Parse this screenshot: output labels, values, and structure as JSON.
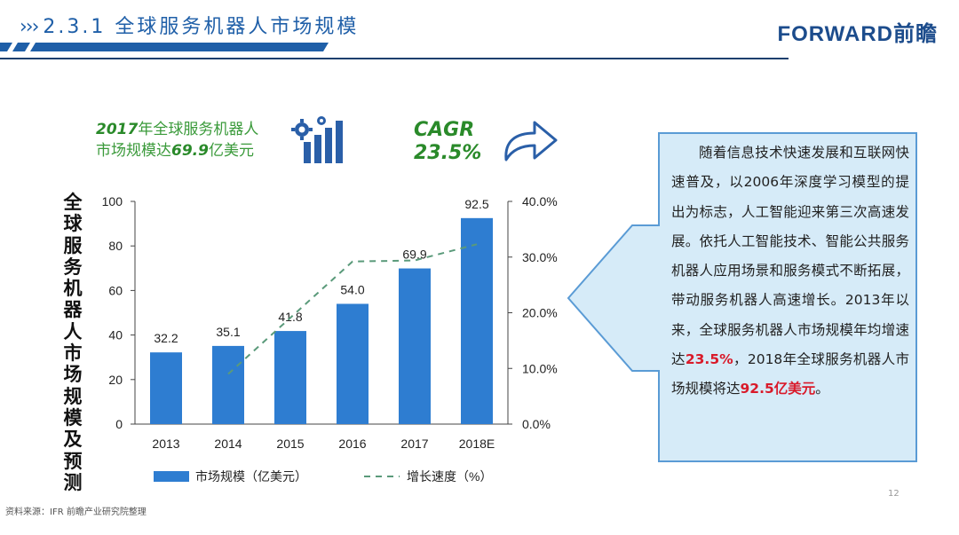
{
  "header": {
    "chevrons": "›››",
    "title": "2.3.1 全球服务机器人市场规模",
    "brand": "FORWARD前瞻",
    "accent_color": "#1f5fa8"
  },
  "highlight": {
    "line1_year": "2017",
    "line1_text": "年全球服务机器人",
    "line2_prefix": "市场规模达",
    "line2_value": "69.9",
    "line2_suffix": "亿美元",
    "icon": "gear-bar-chart-icon"
  },
  "cagr": {
    "label": "CAGR",
    "value": "23.5%",
    "icon": "share-arrow-icon"
  },
  "callout": {
    "text_part1": "随着信息技术快速发展和互联网快速普及，以2006年深度学习模型的提出为标志，人工智能迎来第三次高速发展。依托人工智能技术、智能公共服务机器人应用场景和服务模式不断拓展，带动服务机器人高速增长。2013年以来，全球服务机器人市场规模年均增速达",
    "highlight1": "23.5%",
    "text_part2": "，2018年全球服务机器人市场规模将达",
    "highlight2": "92.5亿美元",
    "text_part3": "。",
    "fill_color": "#d6ebf8",
    "border_color": "#5a9bd5",
    "highlight_color": "#d91a2a"
  },
  "chart_data": {
    "type": "bar",
    "categories": [
      "2013",
      "2014",
      "2015",
      "2016",
      "2017",
      "2018E"
    ],
    "series": [
      {
        "name": "市场规模（亿美元）",
        "type": "bar",
        "axis": "left",
        "values": [
          32.2,
          35.1,
          41.8,
          54.0,
          69.9,
          92.5
        ],
        "labels": [
          "32.2",
          "35.1",
          "41.8",
          "54.0",
          "69.9",
          "92.5"
        ],
        "color": "#2e7dd1"
      },
      {
        "name": "增长速度（%）",
        "type": "line",
        "style": "dashed",
        "axis": "right",
        "values": [
          null,
          9.0,
          19.1,
          29.2,
          29.4,
          32.3
        ],
        "color": "#5a9a7a"
      }
    ],
    "ylabel": "全球服务机器人市场规模及预测",
    "ylim": [
      0,
      100
    ],
    "yticks": [
      "0",
      "20",
      "40",
      "60",
      "80",
      "100"
    ],
    "y2lim": [
      0,
      40
    ],
    "y2ticks": [
      "0.0%",
      "10.0%",
      "20.0%",
      "30.0%",
      "40.0%"
    ],
    "legend_position": "bottom",
    "grid": false
  },
  "footer": {
    "source": "资料来源：IFR 前瞻产业研究院整理",
    "page": "12"
  }
}
